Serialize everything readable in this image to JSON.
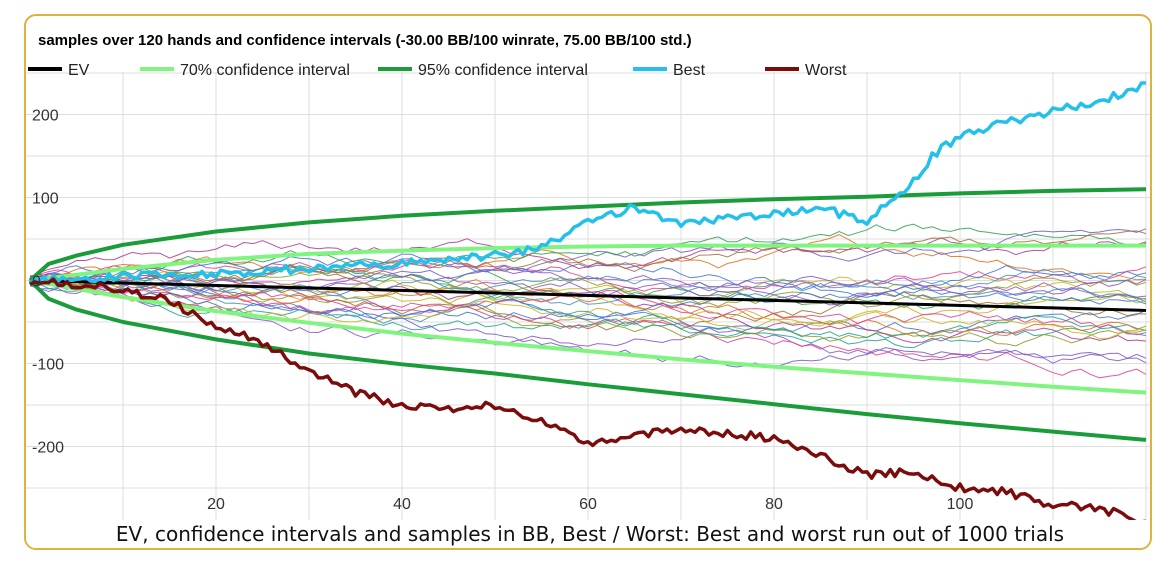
{
  "chart_data": {
    "type": "line",
    "title": "samples over 120 hands and confidence intervals (-30.00 BB/100 winrate, 75.00 BB/100 std.)",
    "caption": "EV, confidence intervals and samples in BB, Best / Worst: Best and worst run out of 1000 trials",
    "xlim": [
      0,
      120
    ],
    "ylim": [
      -290,
      250
    ],
    "xticks": [
      20,
      40,
      60,
      80,
      100
    ],
    "xtick_labels": [
      "20",
      "40",
      "60",
      "80",
      "100"
    ],
    "yticks": [
      200,
      100,
      0,
      -100,
      -200
    ],
    "ytick_labels": [
      "200",
      "100",
      "0",
      "-100",
      "-200"
    ],
    "grid": true,
    "legend": [
      {
        "name": "EV",
        "color": "#000000"
      },
      {
        "name": "70% confidence interval",
        "color": "#7ff57f"
      },
      {
        "name": "95% confidence interval",
        "color": "#1a9c3a"
      },
      {
        "name": "Best",
        "color": "#22c0ea"
      },
      {
        "name": "Worst",
        "color": "#7a0c0c"
      }
    ],
    "series": [
      {
        "name": "EV",
        "x": [
          0,
          120
        ],
        "y": [
          0,
          -36
        ]
      },
      {
        "name": "70% confidence interval",
        "x": [
          0,
          5,
          10,
          20,
          30,
          40,
          50,
          60,
          70,
          80,
          90,
          100,
          110,
          120
        ],
        "y": [
          0,
          7,
          14,
          25,
          32,
          36,
          39,
          41,
          42,
          42,
          42,
          42,
          42,
          42
        ]
      },
      {
        "name": "70% confidence interval",
        "x": [
          0,
          5,
          10,
          20,
          30,
          40,
          50,
          60,
          70,
          80,
          90,
          100,
          110,
          120
        ],
        "y": [
          0,
          -10,
          -20,
          -37,
          -51,
          -64,
          -75,
          -85,
          -95,
          -104,
          -112,
          -120,
          -128,
          -135
        ]
      },
      {
        "name": "95% confidence interval",
        "x": [
          0,
          2,
          5,
          10,
          20,
          30,
          40,
          50,
          60,
          70,
          80,
          90,
          100,
          110,
          120
        ],
        "y": [
          0,
          20,
          30,
          43,
          59,
          70,
          78,
          84,
          89,
          94,
          98,
          101,
          105,
          108,
          110
        ]
      },
      {
        "name": "95% confidence interval",
        "x": [
          0,
          2,
          5,
          10,
          20,
          30,
          40,
          50,
          60,
          70,
          80,
          90,
          100,
          110,
          120
        ],
        "y": [
          0,
          -22,
          -35,
          -50,
          -71,
          -88,
          -101,
          -112,
          -125,
          -137,
          -149,
          -161,
          -172,
          -182,
          -192
        ]
      },
      {
        "name": "Best",
        "x": [
          0,
          10,
          20,
          30,
          40,
          50,
          55,
          60,
          65,
          70,
          75,
          80,
          85,
          90,
          95,
          97,
          100,
          105,
          110,
          115,
          120
        ],
        "y": [
          0,
          5,
          8,
          15,
          20,
          30,
          40,
          70,
          88,
          70,
          75,
          80,
          88,
          70,
          120,
          150,
          175,
          190,
          205,
          215,
          238
        ]
      },
      {
        "name": "Worst",
        "x": [
          0,
          10,
          15,
          20,
          25,
          30,
          35,
          40,
          45,
          50,
          55,
          60,
          65,
          70,
          75,
          80,
          85,
          90,
          95,
          100,
          105,
          110,
          115,
          120
        ],
        "y": [
          0,
          -10,
          -25,
          -55,
          -75,
          -110,
          -135,
          -150,
          -155,
          -150,
          -170,
          -195,
          -185,
          -180,
          -185,
          -190,
          -210,
          -235,
          -230,
          -250,
          -255,
          -270,
          -275,
          -290
        ]
      }
    ]
  }
}
